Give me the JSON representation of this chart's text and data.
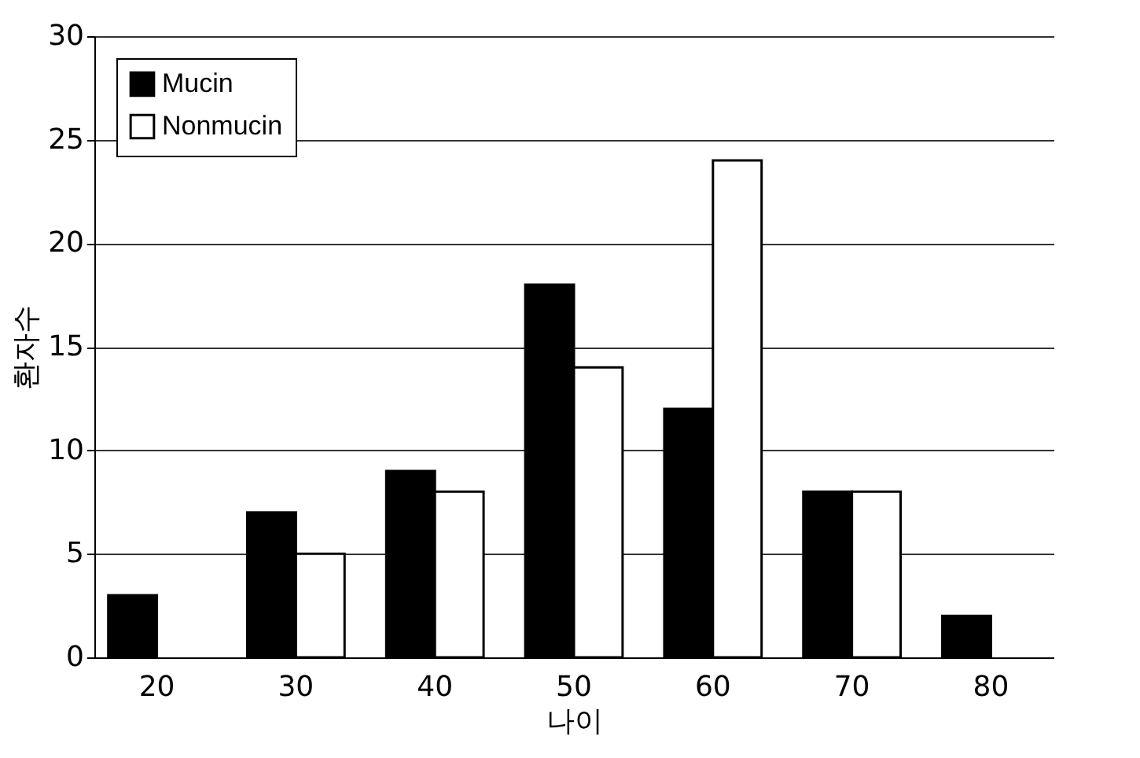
{
  "chart_data": {
    "type": "bar",
    "xlabel": "나이",
    "ylabel": "환자수",
    "categories": [
      "20",
      "30",
      "40",
      "50",
      "60",
      "70",
      "80"
    ],
    "series": [
      {
        "name": "Mucin",
        "color": "#000000",
        "values": [
          3,
          7,
          9,
          18,
          12,
          8,
          2
        ]
      },
      {
        "name": "Nonmucin",
        "color": "#ffffff",
        "values": [
          null,
          5,
          8,
          14,
          24,
          8,
          null
        ]
      }
    ],
    "ylim": [
      0,
      30
    ],
    "yticks": [
      0,
      5,
      10,
      15,
      20,
      25,
      30
    ],
    "grid": "y",
    "legend": "top left"
  }
}
